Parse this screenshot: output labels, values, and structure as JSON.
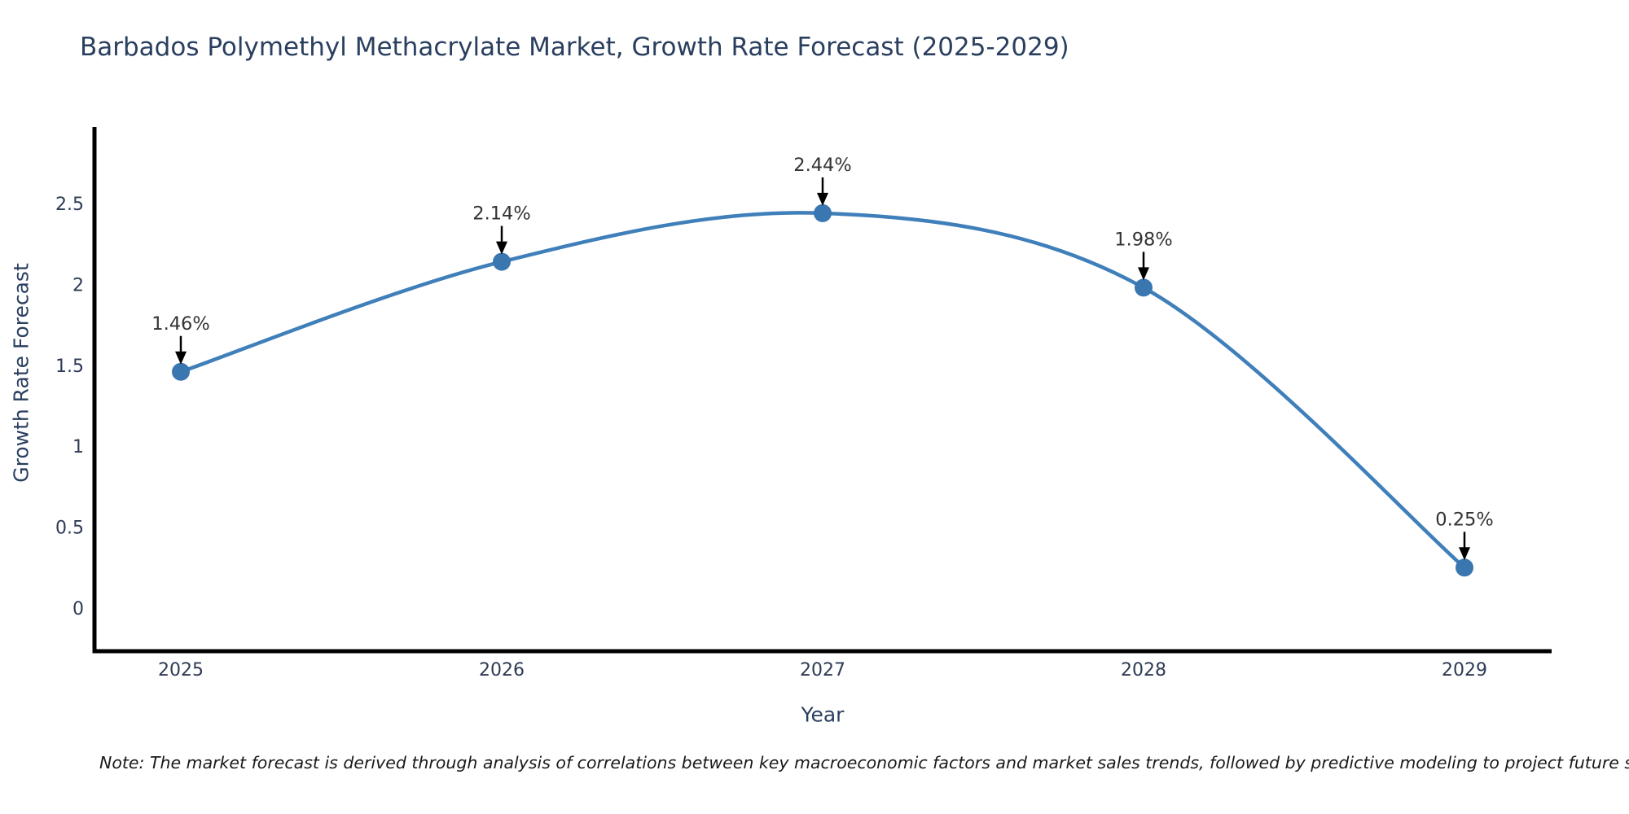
{
  "title": "Barbados Polymethyl Methacrylate Market, Growth Rate Forecast (2025-2029)",
  "note": "Note: The market forecast is derived through analysis of correlations between key macroeconomic factors and market sales trends, followed by predictive modeling to project future sales",
  "chart_data": {
    "type": "line",
    "title": "Barbados Polymethyl Methacrylate Market, Growth Rate Forecast (2025-2029)",
    "xlabel": "Year",
    "ylabel": "Growth Rate Forecast",
    "x": [
      2025,
      2026,
      2027,
      2028,
      2029
    ],
    "x_tick_labels": [
      "2025",
      "2026",
      "2027",
      "2028",
      "2029"
    ],
    "values": [
      1.46,
      2.14,
      2.44,
      1.98,
      0.25
    ],
    "point_labels": [
      "1.46%",
      "2.14%",
      "2.44%",
      "1.98%",
      "0.25%"
    ],
    "yticks": [
      0,
      0.5,
      1,
      1.5,
      2,
      2.5
    ],
    "ytick_labels": [
      "0",
      "0.5",
      "1",
      "1.5",
      "2",
      "2.5"
    ],
    "ylim": [
      -0.27,
      2.96
    ],
    "grid": false,
    "legend": "none",
    "annotation_style": "value label above point with black arrow pointing down to marker"
  },
  "colors": {
    "background": "#ffffff",
    "line": "#3f7fba",
    "marker": "#3a76b0",
    "axis": "#000000",
    "title_text": "#2a3f5f",
    "tick_text": "#2e3b55",
    "annotation_text": "#333333",
    "arrow": "#000000",
    "note_text": "#1a1a1a"
  }
}
